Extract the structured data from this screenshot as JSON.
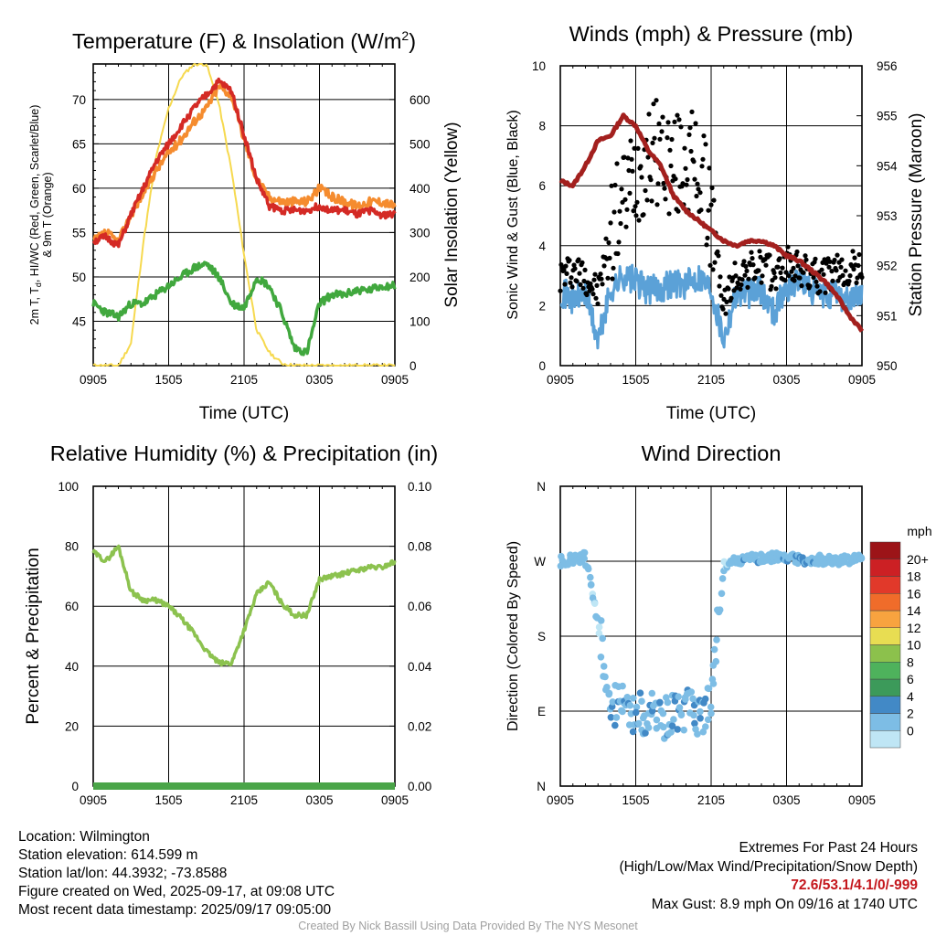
{
  "time_ticks": [
    "0905",
    "1505",
    "2105",
    "0305",
    "0905"
  ],
  "colors": {
    "t2m": "#d42a25",
    "t9m": "#f58c2f",
    "dewpoint": "#41a83e",
    "insolation": "#f6d94f",
    "wind": "#5ba1d7",
    "gust": "#000000",
    "pressure": "#a3201e",
    "rh": "#8cc24f",
    "precip": "#4aa548"
  },
  "charts": [
    {
      "title": "Temperature (F) & Insolation (W/m",
      "title_sup": "2",
      "title_end": ")",
      "xlabel": "Time (UTC)",
      "ylabel_left_line1_a": "2m T, T",
      "ylabel_left_sub": "d",
      "ylabel_left_line1_b": ", HI/WC (Red, Green, Scarlet/Blue)",
      "ylabel_left_line2": "& 9m T (Orange)",
      "ylabel_right": "Solar Insolation (Yellow)",
      "yticks_left": [
        "45",
        "50",
        "55",
        "60",
        "65",
        "70"
      ],
      "yticks_right": [
        "0",
        "100",
        "200",
        "300",
        "400",
        "500",
        "600"
      ]
    },
    {
      "title": "Winds (mph) & Pressure (mb)",
      "xlabel": "Time (UTC)",
      "ylabel_left": "Sonic Wind & Gust (Blue, Black)",
      "ylabel_right": "Station Pressure (Maroon)",
      "yticks_left": [
        "0",
        "2",
        "4",
        "6",
        "8",
        "10"
      ],
      "yticks_right": [
        "950",
        "951",
        "952",
        "953",
        "954",
        "955",
        "956"
      ]
    },
    {
      "title": "Relative Humidity (%) & Precipitation (in)",
      "ylabel_left": "Percent & Precipitation",
      "yticks_left": [
        "0",
        "20",
        "40",
        "60",
        "80",
        "100"
      ],
      "yticks_right": [
        "0.00",
        "0.02",
        "0.04",
        "0.06",
        "0.08",
        "0.10"
      ]
    },
    {
      "title": "Wind Direction",
      "ylabel_left": "Direction (Colored By Speed)",
      "yticks_left": [
        "N",
        "E",
        "S",
        "W",
        "N"
      ],
      "colorbar_title": "mph",
      "colorbar_labels": [
        "0",
        "2",
        "4",
        "6",
        "8",
        "10",
        "12",
        "14",
        "16",
        "18",
        "20+"
      ],
      "colorbar_colors": [
        "#bfe6f5",
        "#7dbde5",
        "#4289c6",
        "#3c9a5a",
        "#4eb25c",
        "#8cc14c",
        "#e8dd52",
        "#f8a33f",
        "#f06c2a",
        "#e1392a",
        "#cc2024",
        "#9c1418"
      ]
    }
  ],
  "chart_data": [
    {
      "type": "line",
      "title": "Temperature (F) & Insolation (W/m2)",
      "xlabel": "Time (UTC)",
      "ylabel": "2m T, Td, HI/WC (Red, Green, Scarlet/Blue) & 9m T (Orange)",
      "y2label": "Solar Insolation (Yellow)",
      "x": [
        "0905",
        "1005",
        "1105",
        "1205",
        "1305",
        "1405",
        "1505",
        "1605",
        "1705",
        "1805",
        "1905",
        "2005",
        "2105",
        "2205",
        "2305",
        "0005",
        "0105",
        "0205",
        "0305",
        "0405",
        "0505",
        "0605",
        "0705",
        "0805",
        "0905"
      ],
      "ylim": [
        40,
        74
      ],
      "y2lim": [
        0,
        680
      ],
      "series": [
        {
          "name": "2m T",
          "axis": "left",
          "values": [
            54,
            54.5,
            53.5,
            57,
            60,
            63,
            65,
            67,
            69,
            70.5,
            72,
            71,
            66,
            61,
            58,
            57.5,
            57.5,
            57.5,
            58,
            57.5,
            57.5,
            57,
            57.5,
            57,
            57
          ]
        },
        {
          "name": "9m T",
          "axis": "left",
          "values": [
            54,
            55,
            54,
            57,
            59.5,
            62,
            64,
            65.5,
            67.5,
            69,
            71.5,
            70.5,
            65.5,
            61,
            59,
            58.5,
            58.5,
            58.5,
            60,
            59,
            58.5,
            58,
            58.5,
            58.5,
            58
          ]
        },
        {
          "name": "Td",
          "axis": "left",
          "values": [
            47,
            46,
            45.5,
            47,
            47,
            48,
            49,
            50,
            51,
            51.5,
            50,
            47,
            46.5,
            50,
            49,
            46,
            42,
            41.5,
            47,
            48,
            48,
            48.5,
            48.5,
            49,
            49
          ]
        },
        {
          "name": "Solar Insolation",
          "axis": "right",
          "values": [
            0,
            0,
            0,
            50,
            280,
            470,
            580,
            650,
            680,
            680,
            590,
            440,
            250,
            80,
            30,
            5,
            0,
            0,
            0,
            0,
            0,
            0,
            0,
            0,
            0
          ]
        }
      ]
    },
    {
      "type": "line",
      "title": "Winds (mph) & Pressure (mb)",
      "xlabel": "Time (UTC)",
      "ylabel": "Sonic Wind & Gust (Blue, Black)",
      "y2label": "Station Pressure (Maroon)",
      "x": [
        "0905",
        "1005",
        "1105",
        "1205",
        "1305",
        "1405",
        "1505",
        "1605",
        "1705",
        "1805",
        "1905",
        "2005",
        "2105",
        "2205",
        "2305",
        "0005",
        "0105",
        "0205",
        "0305",
        "0405",
        "0505",
        "0605",
        "0705",
        "0805",
        "0905"
      ],
      "ylim": [
        0,
        10
      ],
      "y2lim": [
        950,
        956
      ],
      "series": [
        {
          "name": "Sonic Wind",
          "axis": "left",
          "values": [
            2.5,
            2.2,
            2.4,
            0.8,
            2.5,
            3.0,
            2.8,
            2.5,
            2.6,
            2.8,
            2.7,
            3.0,
            2.6,
            0.9,
            2.5,
            2.4,
            2.5,
            1.8,
            2.6,
            2.9,
            2.5,
            2.3,
            2.4,
            2.2,
            2.4
          ]
        },
        {
          "name": "Gust",
          "axis": "left",
          "values": [
            3.0,
            3.2,
            3.0,
            2.4,
            4.5,
            5.5,
            6.5,
            7.0,
            7.2,
            6.5,
            7.0,
            6.5,
            5.0,
            2.0,
            3.0,
            3.2,
            3.3,
            3.0,
            3.4,
            3.2,
            3.0,
            3.0,
            3.1,
            3.2,
            3.3
          ]
        },
        {
          "name": "Station Pressure",
          "axis": "right",
          "values": [
            953.7,
            953.6,
            954.0,
            954.5,
            954.6,
            955.0,
            954.8,
            954.3,
            954.0,
            953.4,
            953.1,
            952.9,
            952.7,
            952.5,
            952.4,
            952.5,
            952.5,
            952.4,
            952.2,
            952.1,
            951.9,
            951.7,
            951.4,
            951.0,
            950.7
          ]
        }
      ]
    },
    {
      "type": "line",
      "title": "Relative Humidity (%) & Precipitation (in)",
      "ylabel": "Percent & Precipitation",
      "x": [
        "0905",
        "1005",
        "1105",
        "1205",
        "1305",
        "1405",
        "1505",
        "1605",
        "1705",
        "1805",
        "1905",
        "2005",
        "2105",
        "2205",
        "2305",
        "0005",
        "0105",
        "0205",
        "0305",
        "0405",
        "0505",
        "0605",
        "0705",
        "0805",
        "0905"
      ],
      "ylim": [
        0,
        100
      ],
      "y2lim": [
        0,
        0.1
      ],
      "series": [
        {
          "name": "RH",
          "axis": "left",
          "values": [
            78,
            75,
            80,
            65,
            62,
            62,
            60,
            56,
            51,
            45,
            41,
            41,
            52,
            64,
            68,
            61,
            57,
            57,
            69,
            70,
            71,
            72,
            73,
            73,
            75
          ]
        },
        {
          "name": "Precipitation",
          "axis": "right",
          "values": [
            0,
            0,
            0,
            0,
            0,
            0,
            0,
            0,
            0,
            0,
            0,
            0,
            0,
            0,
            0,
            0,
            0,
            0,
            0,
            0,
            0,
            0,
            0,
            0,
            0
          ]
        }
      ]
    },
    {
      "type": "scatter",
      "title": "Wind Direction",
      "ylabel": "Direction (Colored By Speed)",
      "x": [
        "0905",
        "1005",
        "1105",
        "1205",
        "1305",
        "1405",
        "1505",
        "1605",
        "1705",
        "1805",
        "1905",
        "2005",
        "2105",
        "2205",
        "2305",
        "0005",
        "0105",
        "0205",
        "0305",
        "0405",
        "0505",
        "0605",
        "0705",
        "0805",
        "0905"
      ],
      "ylim": [
        0,
        360
      ],
      "series": [
        {
          "name": "Direction",
          "values": [
            270,
            272,
            275,
            200,
            100,
            95,
            85,
            90,
            80,
            85,
            90,
            85,
            95,
            265,
            270,
            272,
            275,
            275,
            274,
            273,
            272,
            272,
            271,
            271,
            272
          ]
        },
        {
          "name": "Speed",
          "values": [
            2.5,
            2.2,
            2.4,
            0.8,
            2.5,
            3.0,
            2.8,
            2.5,
            2.6,
            2.8,
            2.7,
            3.0,
            2.6,
            0.9,
            2.5,
            2.4,
            2.5,
            1.8,
            2.6,
            2.9,
            2.5,
            2.3,
            2.4,
            2.2,
            2.4
          ]
        }
      ]
    }
  ],
  "footer": {
    "location": "Location: Wilmington",
    "elevation": "Station elevation: 614.599 m",
    "latlon": "Station lat/lon: 44.3932; -73.8588",
    "created": "Figure created on Wed, 2025-09-17, at 09:08 UTC",
    "recent": "Most recent data timestamp: 2025/09/17 09:05:00",
    "extremes_title": "Extremes For Past 24 Hours",
    "extremes_legend": "(High/Low/Max Wind/Precipitation/Snow Depth)",
    "extremes_values": "72.6/53.1/4.1/0/-999",
    "max_gust": "Max Gust: 8.9 mph On 09/16 at 1740 UTC",
    "credit": "Created By Nick Bassill Using Data Provided By The NYS Mesonet"
  }
}
